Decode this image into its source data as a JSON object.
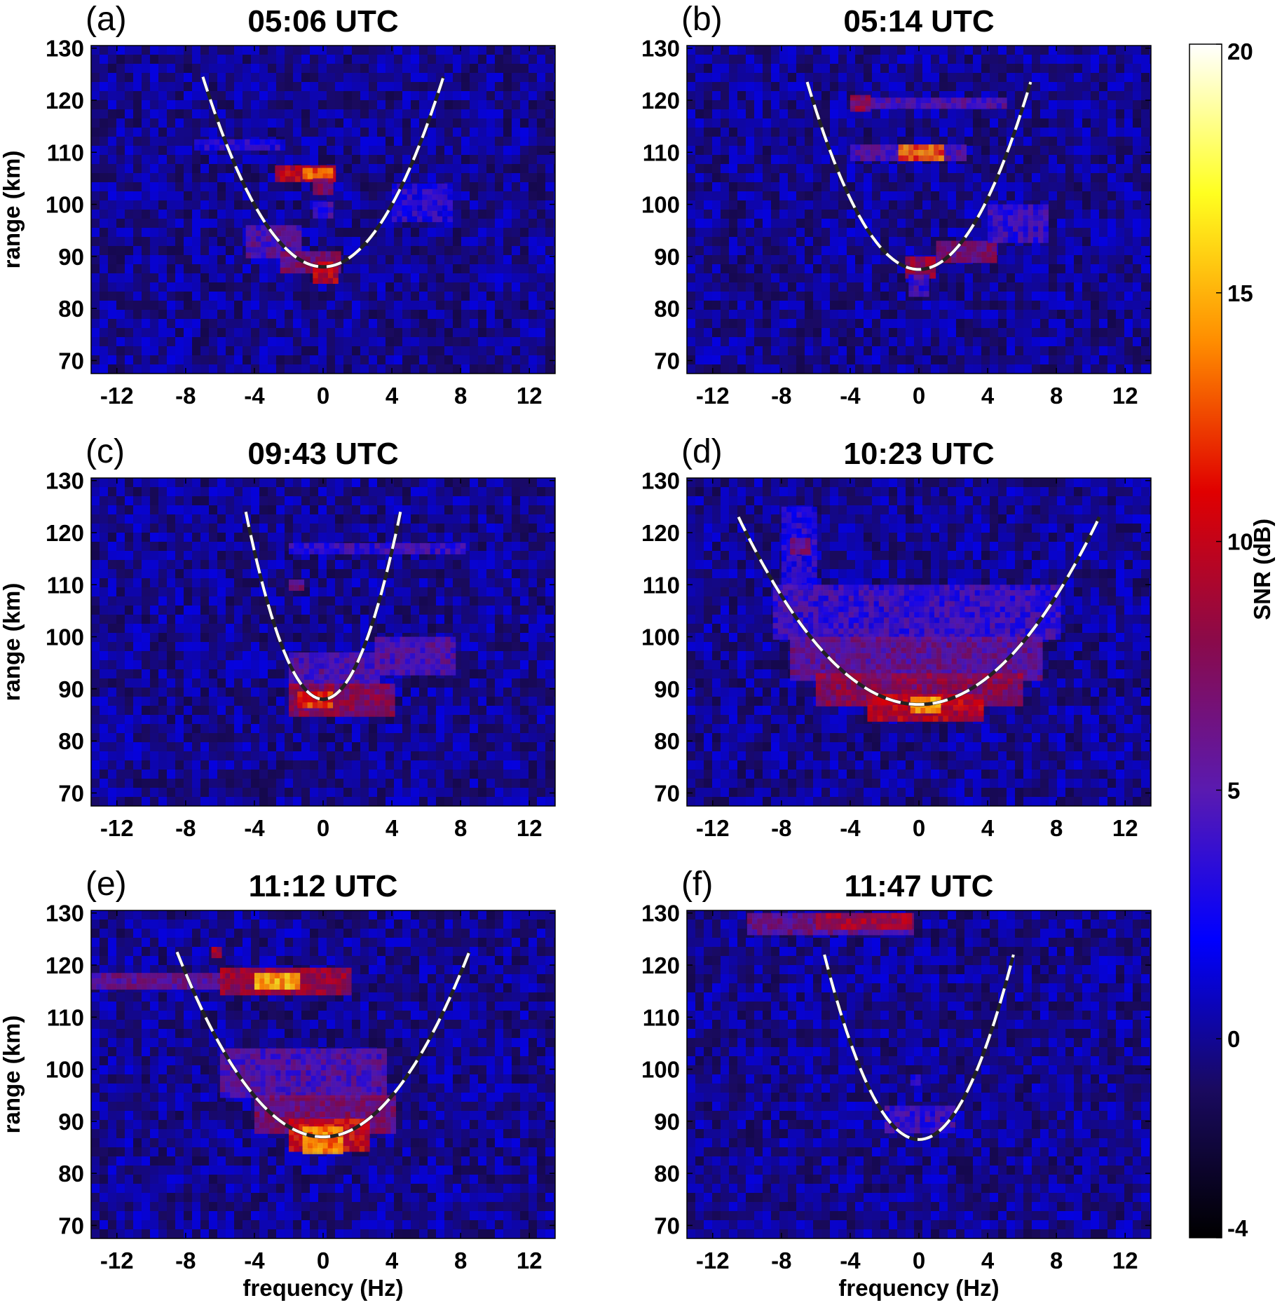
{
  "chart_data": {
    "type": "heatmap",
    "layout": "3x2 panels with shared colorbar",
    "x_ticks": [
      -12,
      -8,
      -4,
      0,
      4,
      8,
      12
    ],
    "y_ticks": [
      70,
      80,
      90,
      100,
      110,
      120,
      130
    ],
    "xlim": [
      -13.5,
      13.5
    ],
    "ylim": [
      67.5,
      130.5
    ],
    "colorbar": {
      "label": "SNR (dB)",
      "min": -4,
      "max": 20,
      "ticks": [
        20,
        15,
        10,
        5,
        0,
        -4
      ],
      "colormap": [
        "#000000",
        "#1a0a60",
        "#0000ff",
        "#5a1ab0",
        "#8a0a4a",
        "#e00000",
        "#ff8c00",
        "#ffff20",
        "#ffffff"
      ]
    },
    "panels": [
      {
        "letter": "(a)",
        "title": "05:06 UTC",
        "xlabel": "",
        "ylabel": "range (km)",
        "parabola": {
          "vertex_freq": 0,
          "vertex_range": 88,
          "ends_freq": [
            -7,
            7
          ],
          "top_range": 124.5
        },
        "features": [
          {
            "freq": [
              -2.8,
              0.6
            ],
            "range": [
              104.5,
              107.5
            ],
            "snr": 10
          },
          {
            "freq": [
              -1.2,
              0.4
            ],
            "range": [
              105,
              107
            ],
            "snr": 13
          },
          {
            "freq": [
              -0.6,
              0.3
            ],
            "range": [
              102.5,
              105
            ],
            "snr": 8
          },
          {
            "freq": [
              -0.6,
              0.4
            ],
            "range": [
              98,
              100.5
            ],
            "snr": 4
          },
          {
            "freq": [
              -4.5,
              -1.5
            ],
            "range": [
              90,
              96
            ],
            "snr": 5
          },
          {
            "freq": [
              -2.5,
              0.8
            ],
            "range": [
              87.5,
              91
            ],
            "snr": 7
          },
          {
            "freq": [
              -0.6,
              0.6
            ],
            "range": [
              85,
              89
            ],
            "snr": 10
          },
          {
            "freq": [
              -7.5,
              -2.5
            ],
            "range": [
              110.5,
              112.5
            ],
            "snr": 3
          },
          {
            "freq": [
              4,
              7.5
            ],
            "range": [
              97,
              104
            ],
            "snr": 3
          }
        ]
      },
      {
        "letter": "(b)",
        "title": "05:14 UTC",
        "xlabel": "",
        "ylabel": "",
        "parabola": {
          "vertex_freq": 0,
          "vertex_range": 87.5,
          "ends_freq": [
            -6.5,
            6.5
          ],
          "top_range": 123.5
        },
        "features": [
          {
            "freq": [
              -4,
              5
            ],
            "range": [
              118.5,
              120.5
            ],
            "snr": 5
          },
          {
            "freq": [
              -4,
              -3
            ],
            "range": [
              118,
              121
            ],
            "snr": 8
          },
          {
            "freq": [
              -4,
              2.5
            ],
            "range": [
              108.5,
              111.5
            ],
            "snr": 5
          },
          {
            "freq": [
              -1.2,
              1.2
            ],
            "range": [
              108.5,
              111.5
            ],
            "snr": 13
          },
          {
            "freq": [
              1,
              4.5
            ],
            "range": [
              89,
              93
            ],
            "snr": 7
          },
          {
            "freq": [
              4,
              7.5
            ],
            "range": [
              93,
              100
            ],
            "snr": 4
          },
          {
            "freq": [
              -0.8,
              0.8
            ],
            "range": [
              86.5,
              90
            ],
            "snr": 9
          },
          {
            "freq": [
              -0.6,
              0.4
            ],
            "range": [
              83,
              86.5
            ],
            "snr": 4
          }
        ]
      },
      {
        "letter": "(c)",
        "title": "09:43 UTC",
        "xlabel": "",
        "ylabel": "range (km)",
        "parabola": {
          "vertex_freq": 0,
          "vertex_range": 88,
          "ends_freq": [
            -4.5,
            4.5
          ],
          "top_range": 124
        },
        "features": [
          {
            "freq": [
              -2,
              8
            ],
            "range": [
              116,
              118
            ],
            "snr": 4
          },
          {
            "freq": [
              -2,
              3
            ],
            "range": [
              91,
              97
            ],
            "snr": 5
          },
          {
            "freq": [
              3,
              7.5
            ],
            "range": [
              93,
              100
            ],
            "snr": 5
          },
          {
            "freq": [
              -2,
              4
            ],
            "range": [
              85,
              91
            ],
            "snr": 8
          },
          {
            "freq": [
              -1.5,
              0.5
            ],
            "range": [
              86.5,
              89.5
            ],
            "snr": 12
          },
          {
            "freq": [
              -2,
              -1.3
            ],
            "range": [
              109,
              111
            ],
            "snr": 6
          }
        ]
      },
      {
        "letter": "(d)",
        "title": "10:23 UTC",
        "xlabel": "",
        "ylabel": "",
        "parabola": {
          "vertex_freq": 0,
          "vertex_range": 87,
          "ends_freq": [
            -10.5,
            10.5
          ],
          "top_range": 123
        },
        "features": [
          {
            "freq": [
              -8,
              -6
            ],
            "range": [
              110,
              125
            ],
            "snr": 3
          },
          {
            "freq": [
              -8.5,
              8
            ],
            "range": [
              100,
              110
            ],
            "snr": 4
          },
          {
            "freq": [
              -7.5,
              7
            ],
            "range": [
              92,
              100
            ],
            "snr": 6
          },
          {
            "freq": [
              -6,
              6
            ],
            "range": [
              87.5,
              93
            ],
            "snr": 8
          },
          {
            "freq": [
              -3,
              3.5
            ],
            "range": [
              84.5,
              89
            ],
            "snr": 10
          },
          {
            "freq": [
              -0.5,
              1.2
            ],
            "range": [
              85.5,
              88.5
            ],
            "snr": 15
          },
          {
            "freq": [
              -7.5,
              -6.5
            ],
            "range": [
              116,
              119
            ],
            "snr": 7
          }
        ]
      },
      {
        "letter": "(e)",
        "title": "11:12 UTC",
        "xlabel": "frequency (Hz)",
        "ylabel": "range (km)",
        "parabola": {
          "vertex_freq": 0,
          "vertex_range": 87,
          "ends_freq": [
            -8.5,
            8.5
          ],
          "top_range": 122.5
        },
        "features": [
          {
            "freq": [
              -13.5,
              -6
            ],
            "range": [
              116,
              118.5
            ],
            "snr": 6
          },
          {
            "freq": [
              -6,
              1.5
            ],
            "range": [
              115,
              119.5
            ],
            "snr": 9
          },
          {
            "freq": [
              -4,
              -1.5
            ],
            "range": [
              115.5,
              118.5
            ],
            "snr": 15
          },
          {
            "freq": [
              -6.5,
              -6
            ],
            "range": [
              121.5,
              123.5
            ],
            "snr": 9
          },
          {
            "freq": [
              -6,
              3.5
            ],
            "range": [
              95,
              104
            ],
            "snr": 5
          },
          {
            "freq": [
              -4,
              4
            ],
            "range": [
              88.5,
              95
            ],
            "snr": 7
          },
          {
            "freq": [
              -2,
              2.5
            ],
            "range": [
              84.5,
              90.5
            ],
            "snr": 11
          },
          {
            "freq": [
              -1.2,
              1
            ],
            "range": [
              84.5,
              89
            ],
            "snr": 14
          }
        ]
      },
      {
        "letter": "(f)",
        "title": "11:47 UTC",
        "xlabel": "frequency (Hz)",
        "ylabel": "",
        "parabola": {
          "vertex_freq": 0,
          "vertex_range": 86.5,
          "ends_freq": [
            -5.5,
            5.5
          ],
          "top_range": 122
        },
        "features": [
          {
            "freq": [
              -10,
              -0.5
            ],
            "range": [
              126,
              130
            ],
            "snr": 6
          },
          {
            "freq": [
              -6,
              -0.5
            ],
            "range": [
              127,
              130
            ],
            "snr": 9
          },
          {
            "freq": [
              -2,
              2
            ],
            "range": [
              88,
              93
            ],
            "snr": 4
          },
          {
            "freq": [
              -0.5,
              0
            ],
            "range": [
              97.5,
              99
            ],
            "snr": 3
          }
        ]
      }
    ]
  }
}
